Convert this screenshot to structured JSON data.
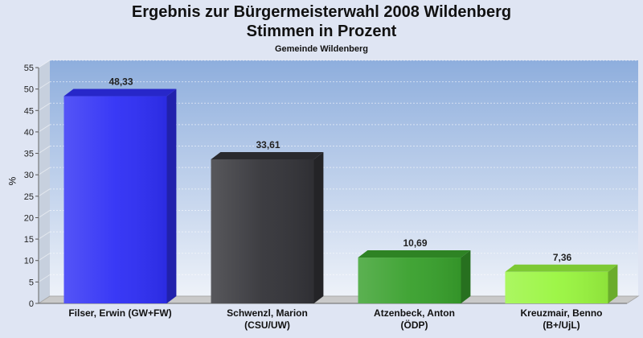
{
  "chart_data": {
    "type": "bar",
    "title": "Ergebnis zur Bürgermeisterwahl 2008 Wildenberg",
    "title_line2": "Stimmen in Prozent",
    "subtitle": "Gemeinde Wildenberg",
    "ylabel": "%",
    "ylim": [
      0,
      55
    ],
    "yticks": [
      0,
      5,
      10,
      15,
      20,
      25,
      30,
      35,
      40,
      45,
      50,
      55
    ],
    "grid": true,
    "categories": [
      [
        "Filser, Erwin (GW+FW)"
      ],
      [
        "Schwenzl, Marion",
        "(CSU/UW)"
      ],
      [
        "Atzenbeck, Anton",
        "(ÖDP)"
      ],
      [
        "Kreuzmair, Benno",
        "(B+/UjL)"
      ]
    ],
    "values": [
      48.33,
      33.61,
      10.69,
      7.36
    ],
    "value_labels": [
      "48,33",
      "33,61",
      "10,69",
      "7,36"
    ],
    "colors": [
      "#2f2ff5",
      "#333338",
      "#38a02c",
      "#99f53f"
    ]
  }
}
